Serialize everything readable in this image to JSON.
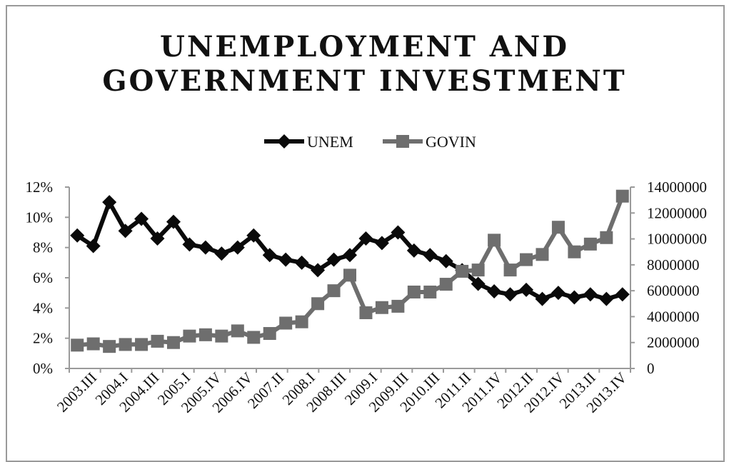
{
  "chart_data": {
    "type": "line",
    "title_lines": [
      "UNEMPLOYMENT AND",
      "GOVERNMENT INVESTMENT"
    ],
    "legend": {
      "position": "top"
    },
    "x_tick_labels": [
      "2003.III",
      "2004.I",
      "2004.III",
      "2005.I",
      "2005.IV",
      "2006.IV",
      "2007.II",
      "2008.I",
      "2008.III",
      "2009.I",
      "2009.III",
      "2010.III",
      "2011.II",
      "2011.IV",
      "2012.II",
      "2012.IV",
      "2013.II",
      "2013.IV"
    ],
    "y_left": {
      "min": 0,
      "max": 12,
      "ticks": [
        "0%",
        "2%",
        "4%",
        "6%",
        "8%",
        "10%",
        "12%"
      ]
    },
    "y_right": {
      "min": 0,
      "max": 14000000,
      "ticks": [
        "0",
        "2000000",
        "4000000",
        "6000000",
        "8000000",
        "10000000",
        "12000000",
        "14000000"
      ]
    },
    "series": [
      {
        "name": "UNEM",
        "axis": "left",
        "color": "#0a0a0a",
        "marker": "diamond",
        "values": [
          8.8,
          8.1,
          11.0,
          9.1,
          9.9,
          8.6,
          9.7,
          8.2,
          8.0,
          7.6,
          8.0,
          8.8,
          7.5,
          7.2,
          7.0,
          6.5,
          7.2,
          7.5,
          8.6,
          8.3,
          9.0,
          7.8,
          7.5,
          7.1,
          6.5,
          5.6,
          5.1,
          4.9,
          5.2,
          4.6,
          5.0,
          4.7,
          4.9,
          4.6,
          4.9
        ]
      },
      {
        "name": "GOVIN",
        "axis": "right",
        "color": "#6e6e6e",
        "marker": "square",
        "values": [
          1800000,
          1900000,
          1700000,
          1850000,
          1850000,
          2100000,
          2000000,
          2500000,
          2600000,
          2500000,
          2900000,
          2400000,
          2700000,
          3500000,
          3600000,
          5000000,
          6000000,
          7200000,
          4300000,
          4700000,
          4800000,
          5900000,
          5900000,
          6500000,
          7500000,
          7600000,
          9900000,
          7600000,
          8400000,
          8800000,
          10900000,
          9000000,
          9600000,
          10100000,
          13300000
        ]
      }
    ]
  }
}
